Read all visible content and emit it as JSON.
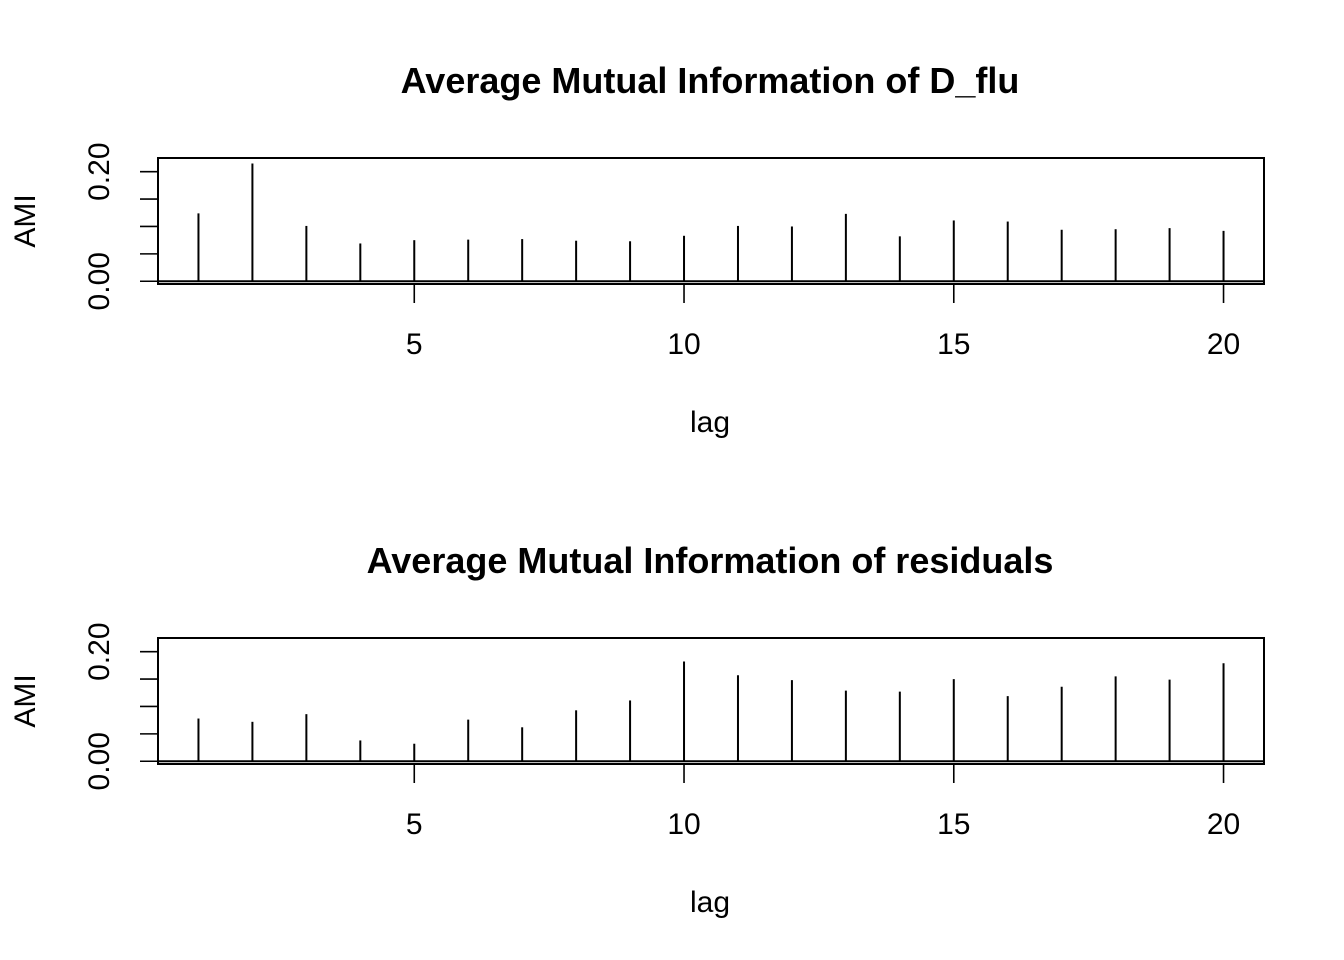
{
  "chart_data": [
    {
      "type": "bar",
      "title": "Average Mutual Information of D_flu",
      "xlabel": "lag",
      "ylabel": "AMI",
      "xlim": [
        0.25,
        20.75
      ],
      "ylim": [
        -0.005,
        0.225
      ],
      "x_ticks": [
        5,
        10,
        15,
        20
      ],
      "x_tick_labels": [
        "5",
        "10",
        "15",
        "20"
      ],
      "y_ticks": [
        0.0,
        0.05,
        0.1,
        0.15,
        0.2
      ],
      "y_tick_labels": [
        "0.00",
        "",
        "",
        "",
        "0.20"
      ],
      "grid": false,
      "x": [
        1,
        2,
        3,
        4,
        5,
        6,
        7,
        8,
        9,
        10,
        11,
        12,
        13,
        14,
        15,
        16,
        17,
        18,
        19,
        20
      ],
      "values": [
        0.124,
        0.215,
        0.101,
        0.069,
        0.075,
        0.076,
        0.077,
        0.074,
        0.073,
        0.083,
        0.101,
        0.1,
        0.123,
        0.082,
        0.111,
        0.109,
        0.094,
        0.095,
        0.097,
        0.092
      ]
    },
    {
      "type": "bar",
      "title": "Average Mutual Information of residuals",
      "xlabel": "lag",
      "ylabel": "AMI",
      "xlim": [
        0.25,
        20.75
      ],
      "ylim": [
        -0.005,
        0.225
      ],
      "x_ticks": [
        5,
        10,
        15,
        20
      ],
      "x_tick_labels": [
        "5",
        "10",
        "15",
        "20"
      ],
      "y_ticks": [
        0.0,
        0.05,
        0.1,
        0.15,
        0.2
      ],
      "y_tick_labels": [
        "0.00",
        "",
        "",
        "",
        "0.20"
      ],
      "grid": false,
      "x": [
        1,
        2,
        3,
        4,
        5,
        6,
        7,
        8,
        9,
        10,
        11,
        12,
        13,
        14,
        15,
        16,
        17,
        18,
        19,
        20
      ],
      "values": [
        0.078,
        0.072,
        0.086,
        0.038,
        0.032,
        0.076,
        0.062,
        0.093,
        0.111,
        0.182,
        0.157,
        0.148,
        0.129,
        0.127,
        0.15,
        0.119,
        0.136,
        0.155,
        0.149,
        0.179
      ]
    }
  ]
}
